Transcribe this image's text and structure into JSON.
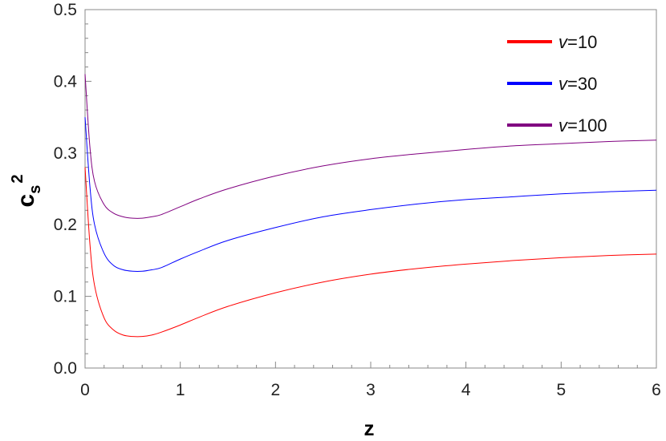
{
  "chart_data": {
    "type": "line",
    "title": "",
    "xlabel": "z",
    "ylabel_main": "c",
    "ylabel_sub": "s",
    "ylabel_sup": "2",
    "xlim": [
      0,
      6
    ],
    "ylim": [
      0,
      0.5
    ],
    "x_ticks": [
      "0",
      "1",
      "2",
      "3",
      "4",
      "5",
      "6"
    ],
    "y_ticks": [
      "0.0",
      "0.1",
      "0.2",
      "0.3",
      "0.4",
      "0.5"
    ],
    "grid": false,
    "legend_position": "top-right",
    "x": [
      0.0,
      0.05,
      0.1,
      0.2,
      0.3,
      0.4,
      0.5,
      0.6,
      0.7,
      0.8,
      1.0,
      1.2,
      1.5,
      2.0,
      2.5,
      3.0,
      3.5,
      4.0,
      4.5,
      5.0,
      5.5,
      6.0
    ],
    "series": [
      {
        "name": "10",
        "color": "#ff0000",
        "values": [
          0.28,
          0.175,
          0.115,
          0.07,
          0.053,
          0.046,
          0.044,
          0.044,
          0.046,
          0.05,
          0.06,
          0.071,
          0.086,
          0.105,
          0.12,
          0.131,
          0.139,
          0.145,
          0.15,
          0.154,
          0.157,
          0.159
        ]
      },
      {
        "name": "30",
        "color": "#0000ff",
        "values": [
          0.35,
          0.255,
          0.2,
          0.16,
          0.143,
          0.137,
          0.135,
          0.135,
          0.137,
          0.14,
          0.152,
          0.163,
          0.178,
          0.196,
          0.211,
          0.221,
          0.229,
          0.235,
          0.239,
          0.243,
          0.246,
          0.248
        ]
      },
      {
        "name": "100",
        "color": "#800080",
        "values": [
          0.41,
          0.31,
          0.26,
          0.228,
          0.216,
          0.211,
          0.209,
          0.209,
          0.211,
          0.214,
          0.225,
          0.236,
          0.25,
          0.268,
          0.282,
          0.292,
          0.299,
          0.305,
          0.31,
          0.313,
          0.316,
          0.318
        ]
      }
    ],
    "legend_prefix": "v="
  }
}
